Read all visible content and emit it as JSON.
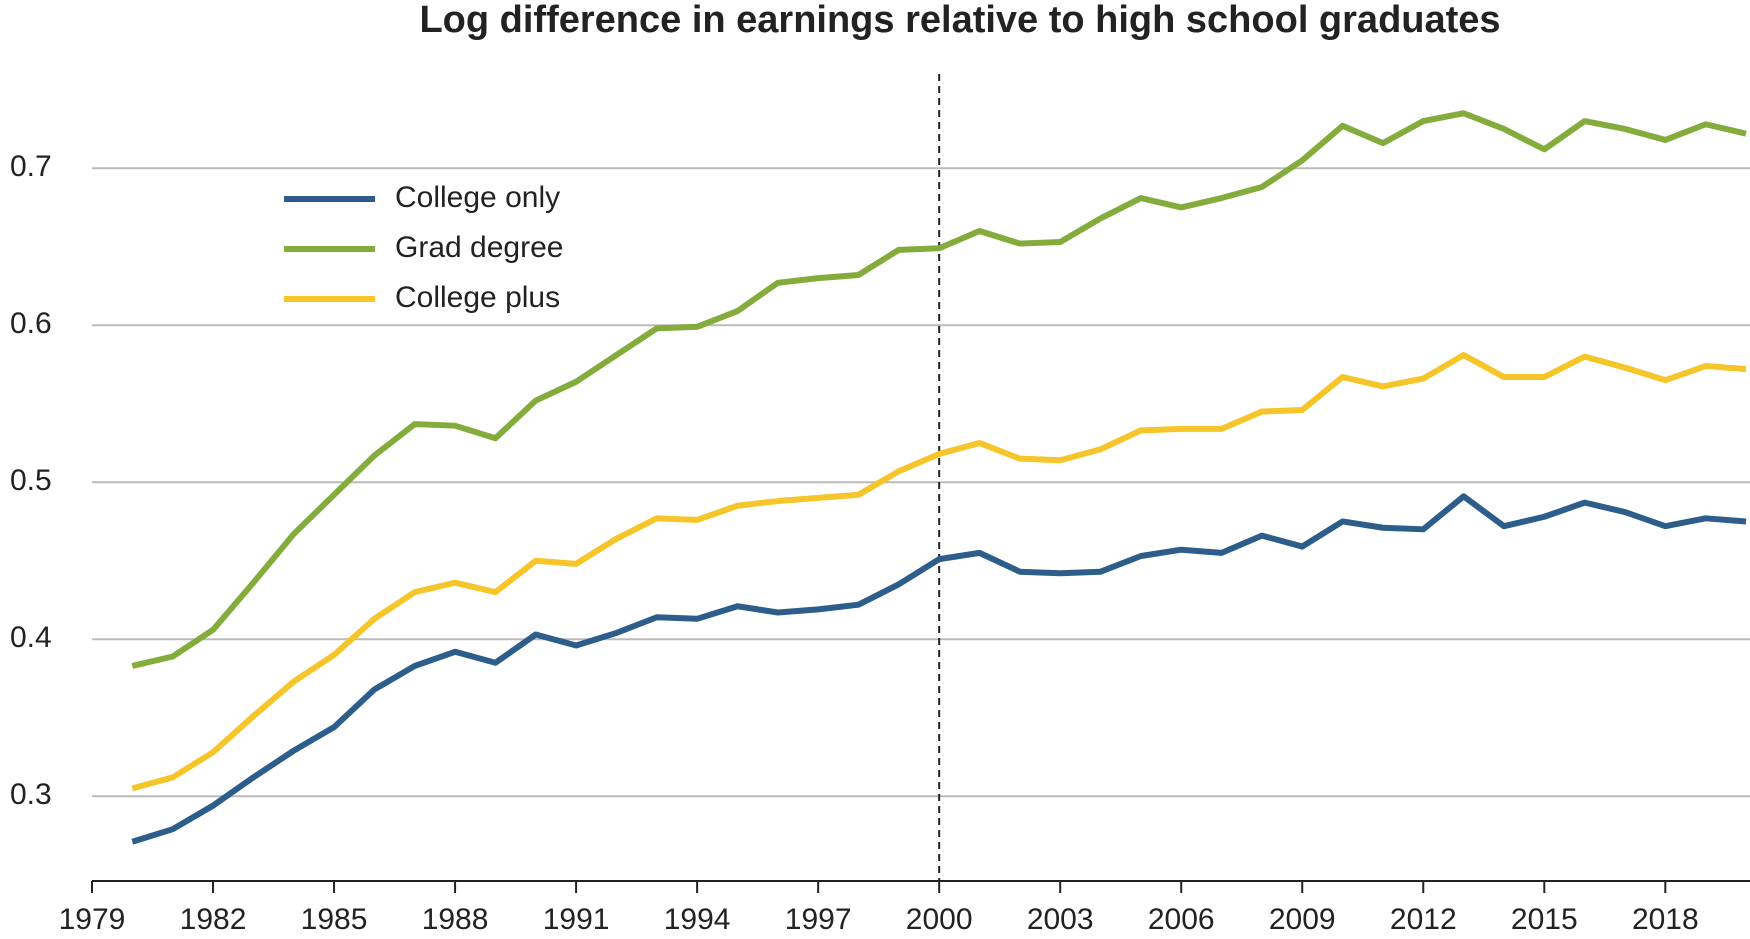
{
  "chart_data": {
    "type": "line",
    "title": "Log difference in earnings relative to high school graduates",
    "x": [
      1980,
      1981,
      1982,
      1983,
      1984,
      1985,
      1986,
      1987,
      1988,
      1989,
      1990,
      1991,
      1992,
      1993,
      1994,
      1995,
      1996,
      1997,
      1998,
      1999,
      2000,
      2001,
      2002,
      2003,
      2004,
      2005,
      2006,
      2007,
      2008,
      2009,
      2010,
      2011,
      2012,
      2013,
      2014,
      2015,
      2016,
      2017,
      2018,
      2019,
      2020
    ],
    "series": [
      {
        "name": "College only",
        "color": "#2d5d8b",
        "values": [
          0.271,
          0.279,
          0.294,
          0.312,
          0.329,
          0.344,
          0.368,
          0.383,
          0.392,
          0.385,
          0.403,
          0.396,
          0.404,
          0.414,
          0.413,
          0.421,
          0.417,
          0.419,
          0.422,
          0.435,
          0.451,
          0.455,
          0.443,
          0.442,
          0.443,
          0.453,
          0.457,
          0.455,
          0.466,
          0.459,
          0.475,
          0.471,
          0.47,
          0.491,
          0.472,
          0.478,
          0.487,
          0.481,
          0.472,
          0.477,
          0.475
        ]
      },
      {
        "name": "Grad degree",
        "color": "#84ac3c",
        "values": [
          0.383,
          0.389,
          0.406,
          0.436,
          0.467,
          0.492,
          0.517,
          0.537,
          0.536,
          0.528,
          0.552,
          0.564,
          0.581,
          0.598,
          0.599,
          0.609,
          0.627,
          0.63,
          0.632,
          0.648,
          0.649,
          0.66,
          0.652,
          0.653,
          0.668,
          0.681,
          0.675,
          0.681,
          0.688,
          0.705,
          0.727,
          0.716,
          0.73,
          0.735,
          0.725,
          0.712,
          0.73,
          0.725,
          0.718,
          0.728,
          0.722
        ]
      },
      {
        "name": "College plus",
        "color": "#f5c52a",
        "values": [
          0.305,
          0.312,
          0.328,
          0.351,
          0.373,
          0.39,
          0.413,
          0.43,
          0.436,
          0.43,
          0.45,
          0.448,
          0.464,
          0.477,
          0.476,
          0.485,
          0.488,
          0.49,
          0.492,
          0.507,
          0.518,
          0.525,
          0.515,
          0.514,
          0.521,
          0.533,
          0.534,
          0.534,
          0.545,
          0.546,
          0.567,
          0.561,
          0.566,
          0.581,
          0.567,
          0.567,
          0.58,
          0.573,
          0.565,
          0.574,
          0.572
        ]
      }
    ],
    "xlim": [
      1979,
      2020
    ],
    "xticks": [
      1979,
      1982,
      1985,
      1988,
      1991,
      1994,
      1997,
      2000,
      2003,
      2006,
      2009,
      2012,
      2015,
      2018
    ],
    "ylim": [
      0.246,
      0.76
    ],
    "yticks": [
      0.3,
      0.4,
      0.5,
      0.6,
      0.7
    ],
    "grid": true,
    "vline": 2000,
    "legend": "upper-left"
  }
}
